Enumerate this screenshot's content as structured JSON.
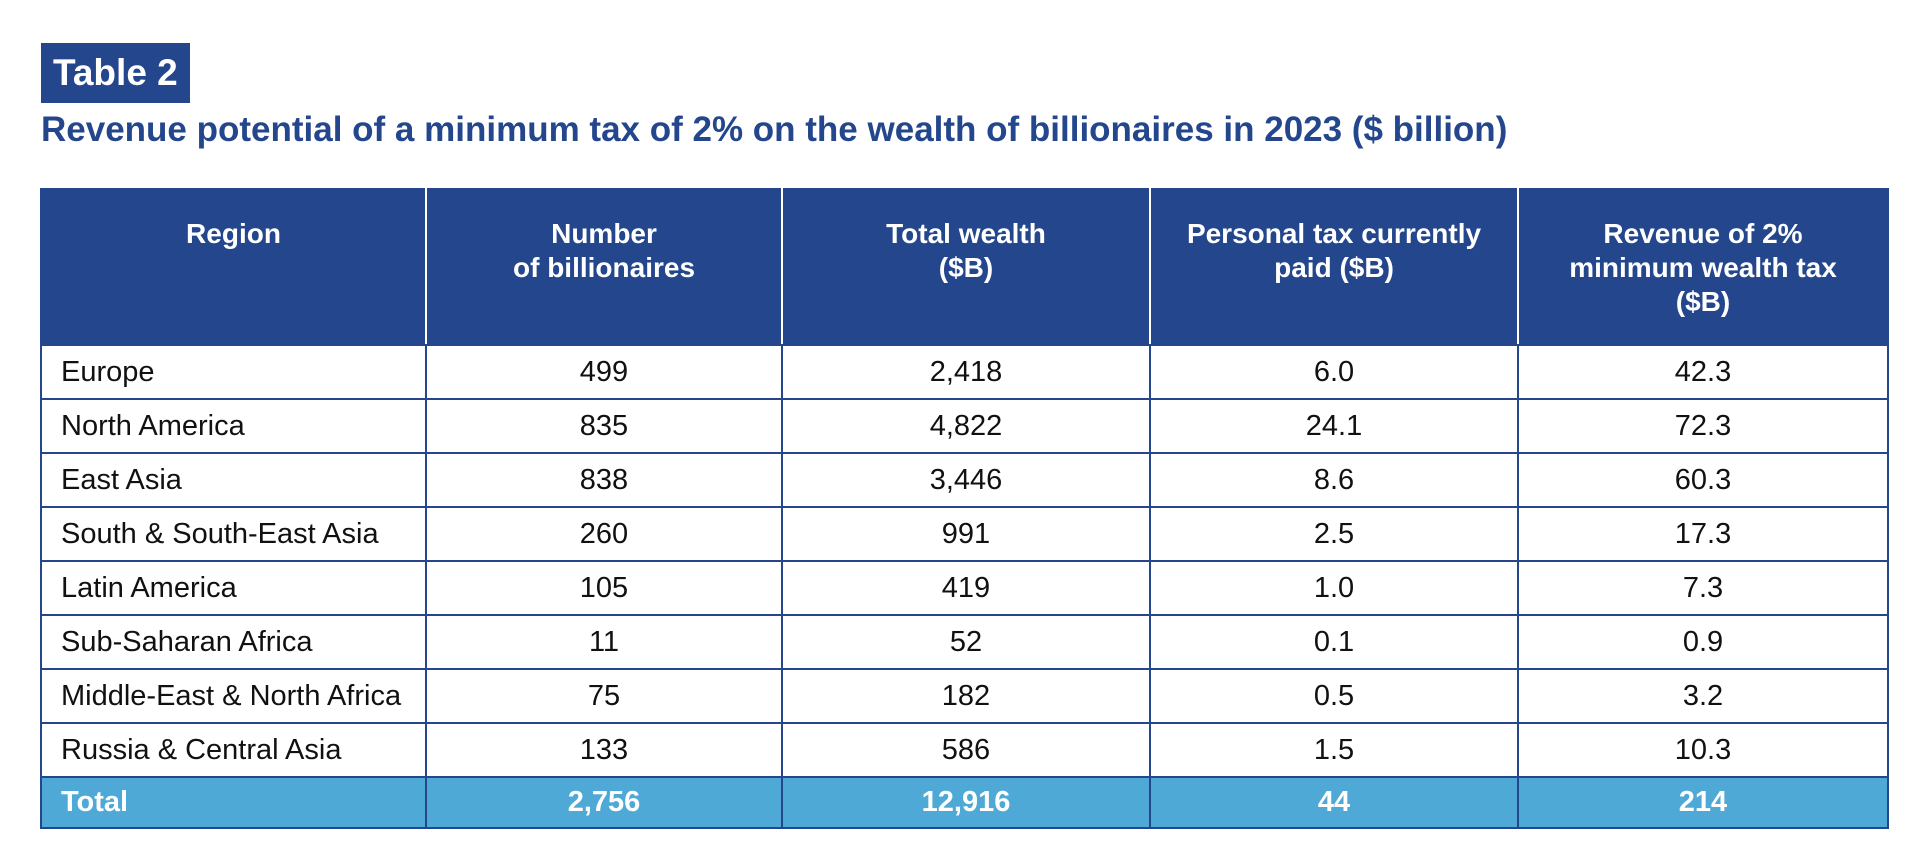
{
  "header": {
    "label": "Table 2",
    "title": "Revenue potential of a minimum tax of 2% on the wealth of billionaires in 2023 ($ billion)"
  },
  "table": {
    "columns": [
      "Region",
      "Number\nof billionaires",
      "Total wealth\n($B)",
      "Personal tax currently\npaid ($B)",
      "Revenue of 2%\nminimum wealth tax\n($B)"
    ],
    "rows": [
      [
        "Europe",
        "499",
        "2,418",
        "6.0",
        "42.3"
      ],
      [
        "North America",
        "835",
        "4,822",
        "24.1",
        "72.3"
      ],
      [
        "East Asia",
        "838",
        "3,446",
        "8.6",
        "60.3"
      ],
      [
        "South & South-East Asia",
        "260",
        "991",
        "2.5",
        "17.3"
      ],
      [
        "Latin America",
        "105",
        "419",
        "1.0",
        "7.3"
      ],
      [
        "Sub-Saharan Africa",
        "11",
        "52",
        "0.1",
        "0.9"
      ],
      [
        "Middle-East & North Africa",
        "75",
        "182",
        "0.5",
        "3.2"
      ],
      [
        "Russia & Central Asia",
        "133",
        "586",
        "1.5",
        "10.3"
      ]
    ],
    "total": [
      "Total",
      "2,756",
      "12,916",
      "44",
      "214"
    ]
  },
  "colors": {
    "header_blue": "#23468c",
    "total_row": "#4fa9d6",
    "text": "#111111"
  }
}
